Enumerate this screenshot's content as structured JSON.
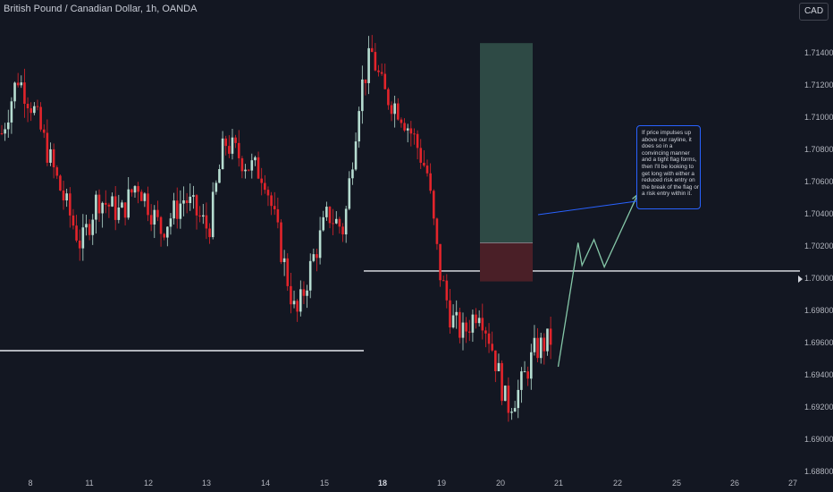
{
  "header": {
    "symbol_title": "British Pound / Canadian Dollar, 1h, OANDA",
    "currency_button": "CAD"
  },
  "annotation": {
    "text": "If price impulses up above our rayline, it does so in a convincing manner and a tight flag forms, then I'll be looking to get long with either a reduced risk entry on the break of the flag or a risk entry within it."
  },
  "colors": {
    "background": "#131722",
    "bull_candle": "#b6ddd1",
    "bear_candle": "#e3242b",
    "profit_zone": "#2e4a45",
    "loss_zone": "#4a1f27",
    "projection": "#85c7a8",
    "note_border": "#2962ff"
  },
  "chart_data": {
    "type": "candlestick",
    "title": "British Pound / Canadian Dollar, 1h, OANDA",
    "ylim": [
      1.6879,
      1.7156
    ],
    "y_ticks": [
      "1.71400",
      "1.71200",
      "1.71000",
      "1.70800",
      "1.70600",
      "1.70400",
      "1.70200",
      "1.70000",
      "1.69800",
      "1.69600",
      "1.69400",
      "1.69200",
      "1.69000",
      "1.68800"
    ],
    "y_tick_values": [
      1.714,
      1.712,
      1.71,
      1.708,
      1.706,
      1.704,
      1.702,
      1.7,
      1.698,
      1.696,
      1.694,
      1.692,
      1.69,
      1.688
    ],
    "x_ticks": [
      {
        "label": "8",
        "bold": false
      },
      {
        "label": "11",
        "bold": false
      },
      {
        "label": "12",
        "bold": false
      },
      {
        "label": "13",
        "bold": false
      },
      {
        "label": "14",
        "bold": false
      },
      {
        "label": "15",
        "bold": false
      },
      {
        "label": "18",
        "bold": true
      },
      {
        "label": "19",
        "bold": false
      },
      {
        "label": "20",
        "bold": false
      },
      {
        "label": "21",
        "bold": false
      },
      {
        "label": "22",
        "bold": false
      },
      {
        "label": "25",
        "bold": false
      },
      {
        "label": "26",
        "bold": false
      },
      {
        "label": "27",
        "bold": false
      }
    ],
    "current_price_marker": 1.7,
    "horizontal_lines": [
      {
        "name": "support-line",
        "price": 1.6955
      },
      {
        "name": "rayline",
        "price": 1.70045
      }
    ],
    "long_position": {
      "entry": 1.7022,
      "target": 1.7146,
      "stop": 1.6998
    },
    "projection_path": [
      {
        "t": 0.7,
        "p": 1.6945
      },
      {
        "t": 0.725,
        "p": 1.7022
      },
      {
        "t": 0.73,
        "p": 1.7008
      },
      {
        "t": 0.745,
        "p": 1.7024
      },
      {
        "t": 0.758,
        "p": 1.7007
      },
      {
        "t": 0.8,
        "p": 1.7052
      }
    ],
    "price_path": [
      {
        "t": 0.0,
        "p": 1.709
      },
      {
        "t": 0.02,
        "p": 1.7125
      },
      {
        "t": 0.04,
        "p": 1.7105
      },
      {
        "t": 0.07,
        "p": 1.706
      },
      {
        "t": 0.1,
        "p": 1.702
      },
      {
        "t": 0.12,
        "p": 1.705
      },
      {
        "t": 0.15,
        "p": 1.704
      },
      {
        "t": 0.17,
        "p": 1.706
      },
      {
        "t": 0.2,
        "p": 1.703
      },
      {
        "t": 0.23,
        "p": 1.705
      },
      {
        "t": 0.26,
        "p": 1.703
      },
      {
        "t": 0.28,
        "p": 1.7085
      },
      {
        "t": 0.31,
        "p": 1.707
      },
      {
        "t": 0.33,
        "p": 1.7065
      },
      {
        "t": 0.35,
        "p": 1.702
      },
      {
        "t": 0.37,
        "p": 1.6975
      },
      {
        "t": 0.39,
        "p": 1.701
      },
      {
        "t": 0.41,
        "p": 1.704
      },
      {
        "t": 0.43,
        "p": 1.703
      },
      {
        "t": 0.45,
        "p": 1.7115
      },
      {
        "t": 0.465,
        "p": 1.714
      },
      {
        "t": 0.48,
        "p": 1.7115
      },
      {
        "t": 0.5,
        "p": 1.7105
      },
      {
        "t": 0.52,
        "p": 1.7085
      },
      {
        "t": 0.535,
        "p": 1.7065
      },
      {
        "t": 0.55,
        "p": 1.7005
      },
      {
        "t": 0.565,
        "p": 1.6975
      },
      {
        "t": 0.58,
        "p": 1.6965
      },
      {
        "t": 0.6,
        "p": 1.6983
      },
      {
        "t": 0.615,
        "p": 1.696
      },
      {
        "t": 0.635,
        "p": 1.692
      },
      {
        "t": 0.65,
        "p": 1.693
      },
      {
        "t": 0.67,
        "p": 1.6955
      },
      {
        "t": 0.69,
        "p": 1.6962
      }
    ]
  }
}
